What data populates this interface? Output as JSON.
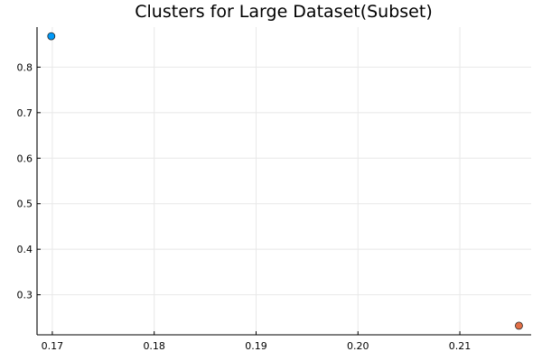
{
  "chart_data": {
    "type": "scatter",
    "title": "Clusters for Large Dataset(Subset)",
    "xlabel": "",
    "ylabel": "",
    "xlim": [
      0.1685,
      0.217
    ],
    "ylim": [
      0.212,
      0.888
    ],
    "x_ticks": [
      0.17,
      0.18,
      0.19,
      0.2,
      0.21
    ],
    "x_tick_labels": [
      "0.17",
      "0.18",
      "0.19",
      "0.20",
      "0.21"
    ],
    "y_ticks": [
      0.3,
      0.4,
      0.5,
      0.6,
      0.7,
      0.8
    ],
    "y_tick_labels": [
      "0.3",
      "0.4",
      "0.5",
      "0.6",
      "0.7",
      "0.8"
    ],
    "grid": true,
    "legend": "none",
    "series": [
      {
        "color": "#009af9",
        "points": [
          {
            "x": 0.1699,
            "y": 0.868
          }
        ]
      },
      {
        "color": "#e26f46",
        "points": [
          {
            "x": 0.2158,
            "y": 0.232
          }
        ]
      }
    ]
  }
}
